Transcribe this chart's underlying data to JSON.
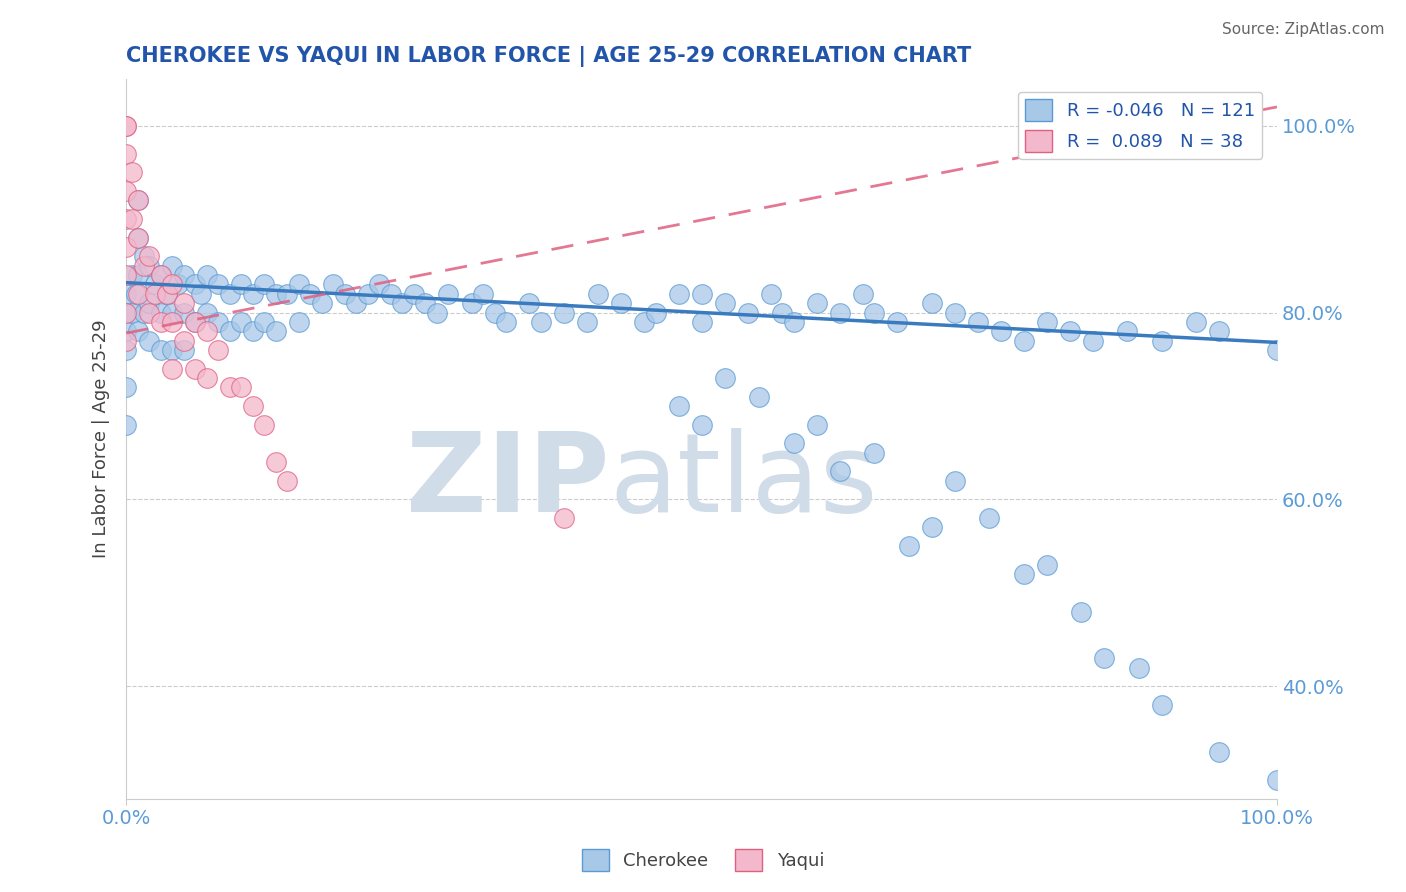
{
  "title": "CHEROKEE VS YAQUI IN LABOR FORCE | AGE 25-29 CORRELATION CHART",
  "source_text": "Source: ZipAtlas.com",
  "xlabel": "",
  "ylabel": "In Labor Force | Age 25-29",
  "xlim": [
    0.0,
    1.0
  ],
  "ylim": [
    0.28,
    1.05
  ],
  "x_tick_labels": [
    "0.0%",
    "100.0%"
  ],
  "y_tick_values": [
    0.4,
    0.6,
    0.8,
    1.0
  ],
  "cherokee_R": -0.046,
  "cherokee_N": 121,
  "yaqui_R": 0.089,
  "yaqui_N": 38,
  "cherokee_color": "#a8c8e8",
  "cherokee_edge_color": "#5b9bd5",
  "cherokee_line_color": "#3a7bbf",
  "yaqui_color": "#f4b8cc",
  "yaqui_edge_color": "#e06080",
  "yaqui_line_color": "#e06080",
  "background_color": "#ffffff",
  "watermark_text": "ZIPatlas",
  "watermark_color": "#d0dce8",
  "title_color": "#2255aa",
  "tick_color": "#5b9bd5",
  "label_color": "#444444",
  "source_color": "#666666",
  "grid_color": "#cccccc",
  "legend_text_color": "#2255aa",
  "cherokee_line_y0": 0.832,
  "cherokee_line_y1": 0.768,
  "yaqui_line_y0": 0.778,
  "yaqui_line_y1": 1.02,
  "cherokee_x": [
    0.0,
    0.0,
    0.0,
    0.0,
    0.0,
    0.0,
    0.005,
    0.005,
    0.008,
    0.01,
    0.01,
    0.01,
    0.01,
    0.015,
    0.015,
    0.02,
    0.02,
    0.02,
    0.025,
    0.03,
    0.03,
    0.03,
    0.035,
    0.04,
    0.04,
    0.04,
    0.045,
    0.05,
    0.05,
    0.05,
    0.06,
    0.06,
    0.065,
    0.07,
    0.07,
    0.08,
    0.08,
    0.09,
    0.09,
    0.1,
    0.1,
    0.11,
    0.11,
    0.12,
    0.12,
    0.13,
    0.13,
    0.14,
    0.15,
    0.15,
    0.16,
    0.17,
    0.18,
    0.19,
    0.2,
    0.21,
    0.22,
    0.23,
    0.24,
    0.25,
    0.26,
    0.27,
    0.28,
    0.3,
    0.31,
    0.32,
    0.33,
    0.35,
    0.36,
    0.38,
    0.4,
    0.41,
    0.43,
    0.45,
    0.46,
    0.48,
    0.5,
    0.5,
    0.52,
    0.54,
    0.56,
    0.57,
    0.58,
    0.6,
    0.62,
    0.64,
    0.65,
    0.67,
    0.7,
    0.72,
    0.74,
    0.76,
    0.78,
    0.8,
    0.82,
    0.84,
    0.87,
    0.9,
    0.93,
    0.95,
    1.0,
    0.48,
    0.52,
    0.5,
    0.55,
    0.58,
    0.6,
    0.62,
    0.65,
    0.68,
    0.7,
    0.72,
    0.75,
    0.78,
    0.8,
    0.83,
    0.85,
    0.88,
    0.9,
    0.95,
    1.0
  ],
  "cherokee_y": [
    0.82,
    0.8,
    0.78,
    0.76,
    0.72,
    0.68,
    0.84,
    0.8,
    0.82,
    0.92,
    0.88,
    0.84,
    0.78,
    0.86,
    0.8,
    0.85,
    0.81,
    0.77,
    0.83,
    0.84,
    0.8,
    0.76,
    0.82,
    0.85,
    0.8,
    0.76,
    0.83,
    0.84,
    0.8,
    0.76,
    0.83,
    0.79,
    0.82,
    0.84,
    0.8,
    0.83,
    0.79,
    0.82,
    0.78,
    0.83,
    0.79,
    0.82,
    0.78,
    0.83,
    0.79,
    0.82,
    0.78,
    0.82,
    0.83,
    0.79,
    0.82,
    0.81,
    0.83,
    0.82,
    0.81,
    0.82,
    0.83,
    0.82,
    0.81,
    0.82,
    0.81,
    0.8,
    0.82,
    0.81,
    0.82,
    0.8,
    0.79,
    0.81,
    0.79,
    0.8,
    0.79,
    0.82,
    0.81,
    0.79,
    0.8,
    0.82,
    0.82,
    0.79,
    0.81,
    0.8,
    0.82,
    0.8,
    0.79,
    0.81,
    0.8,
    0.82,
    0.8,
    0.79,
    0.81,
    0.8,
    0.79,
    0.78,
    0.77,
    0.79,
    0.78,
    0.77,
    0.78,
    0.77,
    0.79,
    0.78,
    0.76,
    0.7,
    0.73,
    0.68,
    0.71,
    0.66,
    0.68,
    0.63,
    0.65,
    0.55,
    0.57,
    0.62,
    0.58,
    0.52,
    0.53,
    0.48,
    0.43,
    0.42,
    0.38,
    0.33,
    0.3
  ],
  "yaqui_x": [
    0.0,
    0.0,
    0.0,
    0.0,
    0.0,
    0.0,
    0.0,
    0.0,
    0.0,
    0.005,
    0.005,
    0.01,
    0.01,
    0.01,
    0.015,
    0.02,
    0.02,
    0.025,
    0.03,
    0.03,
    0.035,
    0.04,
    0.04,
    0.04,
    0.05,
    0.05,
    0.06,
    0.06,
    0.07,
    0.07,
    0.08,
    0.09,
    0.1,
    0.11,
    0.12,
    0.13,
    0.14,
    0.38
  ],
  "yaqui_y": [
    1.0,
    1.0,
    0.97,
    0.93,
    0.9,
    0.87,
    0.84,
    0.8,
    0.77,
    0.95,
    0.9,
    0.92,
    0.88,
    0.82,
    0.85,
    0.86,
    0.8,
    0.82,
    0.84,
    0.79,
    0.82,
    0.83,
    0.79,
    0.74,
    0.81,
    0.77,
    0.79,
    0.74,
    0.78,
    0.73,
    0.76,
    0.72,
    0.72,
    0.7,
    0.68,
    0.64,
    0.62,
    0.58
  ]
}
